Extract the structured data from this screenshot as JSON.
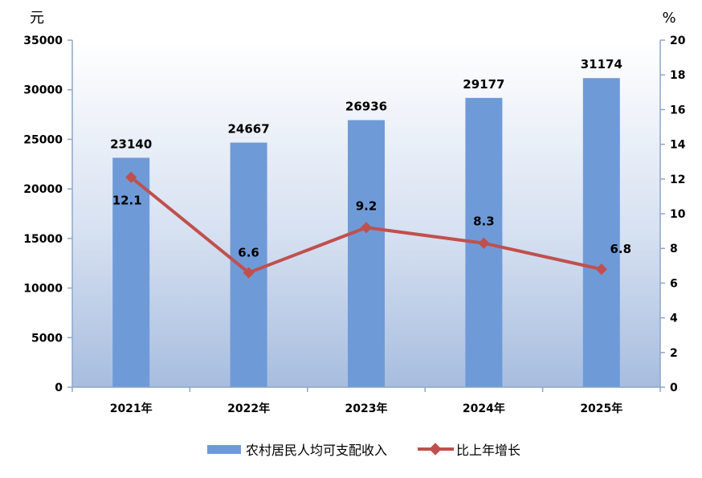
{
  "chart_data": {
    "type": "bar",
    "categories": [
      "2021年",
      "2022年",
      "2023年",
      "2024年",
      "2025年"
    ],
    "left_axis_unit": "元",
    "right_axis_unit": "%",
    "ylim_left": [
      0,
      35000
    ],
    "ylim_right": [
      0,
      20
    ],
    "yticks_left": [
      "0",
      "5000",
      "10000",
      "15000",
      "20000",
      "25000",
      "30000",
      "35000"
    ],
    "yticks_right": [
      "0",
      "2",
      "4",
      "6",
      "8",
      "10",
      "12",
      "14",
      "16",
      "18",
      "20"
    ],
    "series": [
      {
        "name": "农村居民人均可支配收入",
        "type": "bar",
        "axis": "left",
        "values": [
          23140,
          24667,
          26936,
          29177,
          31174
        ],
        "labels": [
          "23140",
          "24667",
          "26936",
          "29177",
          "31174"
        ],
        "color": "#6f9ad8"
      },
      {
        "name": "比上年增长",
        "type": "line",
        "axis": "right",
        "values": [
          12.1,
          6.6,
          9.2,
          8.3,
          6.8
        ],
        "labels": [
          "12.1",
          "6.6",
          "9.2",
          "8.3",
          "6.8"
        ],
        "color": "#c0504d"
      }
    ],
    "grid": false,
    "legend_position": "bottom-center"
  }
}
